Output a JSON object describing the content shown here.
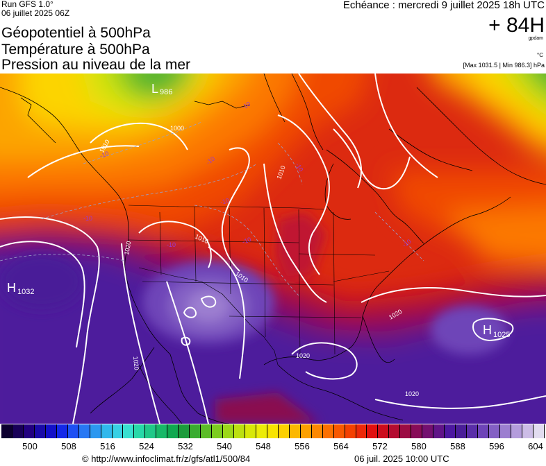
{
  "header": {
    "run_label": "Run GFS 1.0°",
    "run_date": "06 juillet 2025 06Z",
    "title_lines": [
      "Géopotentiel à 500hPa",
      "Température à 500hPa",
      "Pression au niveau de la mer"
    ],
    "valid_time": "Echéance : mercredi 9 juillet 2025 18h UTC",
    "lead_time": "+ 84H",
    "unit_geopotential": "gpdam",
    "unit_temperature": "°C",
    "pressure_extremes": "[Max 1031.5 | Min 986.3] hPa"
  },
  "map": {
    "pressure_centers": [
      {
        "type": "H",
        "value": "1032"
      },
      {
        "type": "L",
        "value": "986"
      },
      {
        "type": "H",
        "value": "1025"
      }
    ],
    "isobar_labels": [
      "1000",
      "1010",
      "1010",
      "1010",
      "1010",
      "1020",
      "1020",
      "1020",
      "1020",
      "1020"
    ],
    "isotherm_labels": [
      "-10",
      "-10",
      "-10",
      "-10",
      "-10",
      "-10",
      "-10",
      "-10",
      "-10"
    ]
  },
  "legend": {
    "ticks": [
      "500",
      "508",
      "516",
      "524",
      "532",
      "540",
      "548",
      "556",
      "564",
      "572",
      "580",
      "588",
      "596",
      "604"
    ],
    "colors": [
      "#0c0030",
      "#180058",
      "#220080",
      "#1a0aa8",
      "#1410c8",
      "#1428e8",
      "#1e50f4",
      "#2878f4",
      "#2c98f0",
      "#30b8ec",
      "#38d0e4",
      "#38e0d0",
      "#28d8a8",
      "#20c888",
      "#18b868",
      "#10a850",
      "#1c9c3c",
      "#3aac30",
      "#5cbc28",
      "#7ccc20",
      "#9cd818",
      "#bce010",
      "#d8e808",
      "#ecec08",
      "#f8e400",
      "#fcd000",
      "#fcb800",
      "#fca000",
      "#fc8800",
      "#fc7000",
      "#f85800",
      "#f44000",
      "#ec2808",
      "#e01010",
      "#cc0c1c",
      "#b40c30",
      "#9c0c44",
      "#880c58",
      "#741070",
      "#601488",
      "#4c18a0",
      "#4a1e98",
      "#5a2ea8",
      "#6e44b8",
      "#8460c4",
      "#9c7ed0",
      "#b49cdc",
      "#ccbce6",
      "#e2dcf0"
    ]
  },
  "footer": {
    "source": "© http://www.infoclimat.fr/z/gfs/atl1/500/84",
    "generated": "06 juil. 2025 10:00 UTC"
  }
}
